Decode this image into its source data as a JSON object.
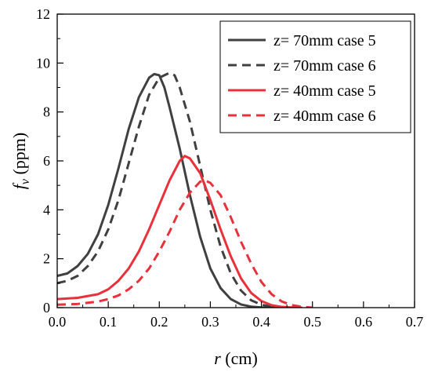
{
  "chart_data": {
    "type": "line",
    "xlabel": {
      "var": "r",
      "unit": " (cm)"
    },
    "ylabel": {
      "var": "f",
      "sub": "v",
      "unit": " (ppm)"
    },
    "xlim": [
      0.0,
      0.7
    ],
    "ylim": [
      0,
      12
    ],
    "xticks": [
      0.0,
      0.1,
      0.2,
      0.3,
      0.4,
      0.5,
      0.6,
      0.7
    ],
    "xtick_labels": [
      "0.0",
      "0.1",
      "0.2",
      "0.3",
      "0.4",
      "0.5",
      "0.6",
      "0.7"
    ],
    "yticks": [
      0,
      2,
      4,
      6,
      8,
      10,
      12
    ],
    "ytick_labels": [
      "0",
      "2",
      "4",
      "6",
      "8",
      "10",
      "12"
    ],
    "grid": false,
    "legend_position": "top-right",
    "series": [
      {
        "name": "z= 70mm case 5",
        "color": "#404040",
        "dash": "solid",
        "x": [
          0.0,
          0.02,
          0.04,
          0.06,
          0.08,
          0.1,
          0.12,
          0.14,
          0.16,
          0.18,
          0.19,
          0.2,
          0.21,
          0.22,
          0.24,
          0.26,
          0.28,
          0.3,
          0.32,
          0.34,
          0.36,
          0.38,
          0.4,
          0.42,
          0.44
        ],
        "y": [
          1.3,
          1.4,
          1.7,
          2.2,
          3.0,
          4.2,
          5.7,
          7.3,
          8.6,
          9.4,
          9.55,
          9.5,
          9.0,
          8.2,
          6.5,
          4.6,
          2.9,
          1.6,
          0.8,
          0.35,
          0.13,
          0.04,
          0.01,
          0.0,
          0.0
        ]
      },
      {
        "name": "z= 70mm case 6",
        "color": "#404040",
        "dash": "dashed",
        "x": [
          0.0,
          0.02,
          0.04,
          0.06,
          0.08,
          0.1,
          0.12,
          0.14,
          0.16,
          0.18,
          0.2,
          0.22,
          0.23,
          0.24,
          0.26,
          0.28,
          0.3,
          0.32,
          0.34,
          0.36,
          0.38,
          0.4,
          0.42,
          0.44,
          0.46
        ],
        "y": [
          1.0,
          1.1,
          1.3,
          1.7,
          2.3,
          3.2,
          4.4,
          5.9,
          7.4,
          8.7,
          9.4,
          9.6,
          9.5,
          9.0,
          7.6,
          5.8,
          4.0,
          2.5,
          1.4,
          0.7,
          0.3,
          0.12,
          0.04,
          0.01,
          0.0
        ]
      },
      {
        "name": "z= 40mm case 5",
        "color": "#e8313a",
        "dash": "solid",
        "x": [
          0.0,
          0.04,
          0.08,
          0.1,
          0.12,
          0.14,
          0.16,
          0.18,
          0.2,
          0.22,
          0.24,
          0.25,
          0.26,
          0.28,
          0.3,
          0.32,
          0.34,
          0.36,
          0.38,
          0.4,
          0.42,
          0.44,
          0.46,
          0.48
        ],
        "y": [
          0.35,
          0.4,
          0.55,
          0.75,
          1.1,
          1.6,
          2.3,
          3.2,
          4.2,
          5.2,
          6.0,
          6.2,
          6.1,
          5.5,
          4.4,
          3.2,
          2.1,
          1.2,
          0.6,
          0.27,
          0.1,
          0.03,
          0.01,
          0.0
        ]
      },
      {
        "name": "z= 40mm case 6",
        "color": "#e8313a",
        "dash": "dashed",
        "x": [
          0.0,
          0.04,
          0.08,
          0.1,
          0.12,
          0.14,
          0.16,
          0.18,
          0.2,
          0.22,
          0.24,
          0.26,
          0.28,
          0.29,
          0.3,
          0.32,
          0.34,
          0.36,
          0.38,
          0.4,
          0.42,
          0.44,
          0.46,
          0.48,
          0.5
        ],
        "y": [
          0.12,
          0.15,
          0.25,
          0.35,
          0.5,
          0.75,
          1.1,
          1.6,
          2.3,
          3.1,
          4.0,
          4.7,
          5.15,
          5.2,
          5.1,
          4.6,
          3.7,
          2.7,
          1.8,
          1.05,
          0.55,
          0.25,
          0.1,
          0.03,
          0.0
        ]
      }
    ]
  }
}
